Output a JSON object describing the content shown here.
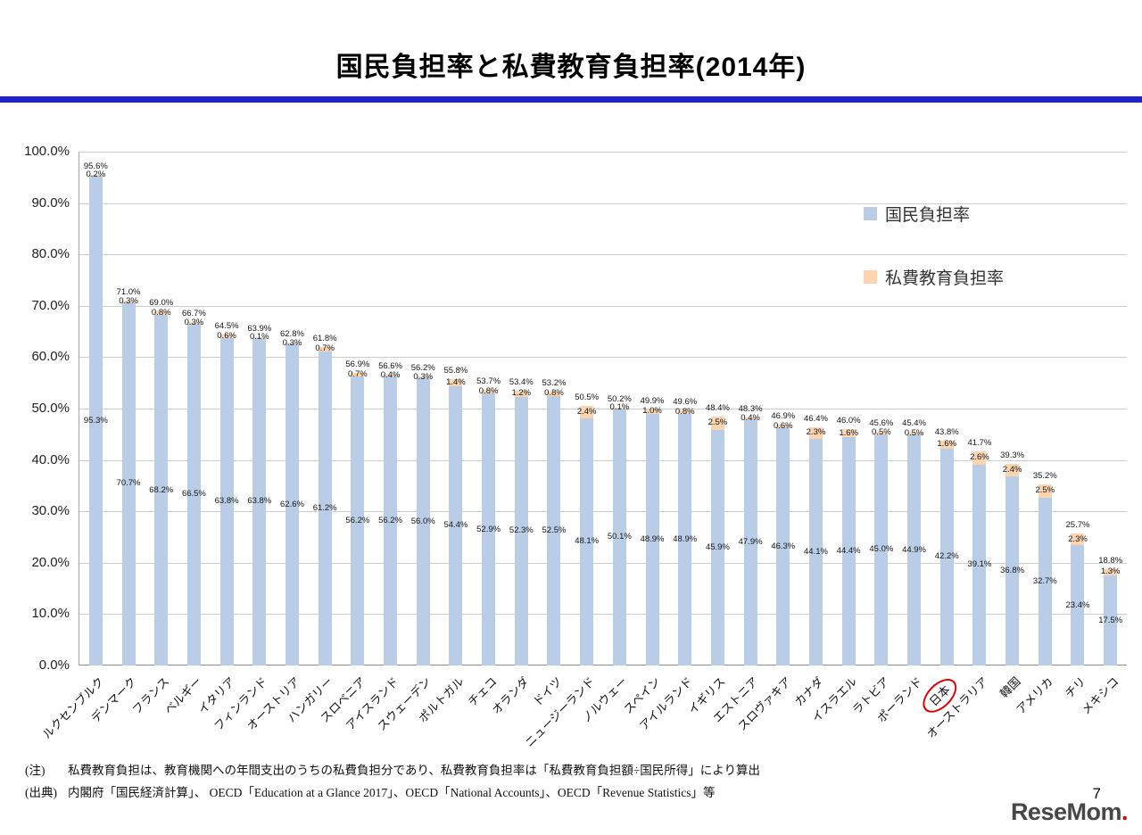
{
  "title": "国民負担率と私費教育負担率(2014年)",
  "legend": {
    "national": "国民負担率",
    "private": "私費教育負担率"
  },
  "colors": {
    "bar_national": "#b9cee6",
    "bar_private": "#fcd5b0",
    "divider_blue": "#2121cc",
    "highlight_red": "#dd0000",
    "grid": "#cccccc"
  },
  "y_axis": {
    "ticks": [
      "100.0%",
      "90.0%",
      "80.0%",
      "70.0%",
      "60.0%",
      "50.0%",
      "40.0%",
      "30.0%",
      "20.0%",
      "10.0%",
      "0.0%"
    ]
  },
  "chart_data": {
    "type": "bar",
    "stacked": true,
    "title": "国民負担率と私費教育負担率(2014年)",
    "xlabel": "",
    "ylabel": "",
    "ylim": [
      0,
      100
    ],
    "grid": true,
    "legend_position": "right",
    "highlight_category": "日本",
    "categories": [
      "ルクセンブルク",
      "デンマーク",
      "フランス",
      "ベルギー",
      "イタリア",
      "フィンランド",
      "オーストリア",
      "ハンガリー",
      "スロベニア",
      "アイスランド",
      "スウェーデン",
      "ポルトガル",
      "チェコ",
      "オランダ",
      "ドイツ",
      "ニュージーランド",
      "ノルウェー",
      "スペイン",
      "アイルランド",
      "イギリス",
      "エストニア",
      "スロヴァキア",
      "カナダ",
      "イスラエル",
      "ラトビア",
      "ポーランド",
      "日本",
      "オーストラリア",
      "韓国",
      "アメリカ",
      "チリ",
      "メキシコ"
    ],
    "series": [
      {
        "name": "国民負担率",
        "values": [
          95.3,
          70.7,
          68.2,
          66.5,
          63.8,
          63.8,
          62.6,
          61.2,
          56.2,
          56.2,
          56.0,
          54.4,
          52.9,
          52.3,
          52.5,
          48.1,
          50.1,
          48.9,
          48.9,
          45.9,
          47.9,
          46.3,
          44.1,
          44.4,
          45.0,
          44.9,
          42.2,
          39.1,
          36.8,
          32.7,
          23.4,
          17.5
        ]
      },
      {
        "name": "私費教育負担率",
        "values": [
          0.2,
          0.3,
          0.8,
          0.3,
          0.6,
          0.1,
          0.3,
          0.7,
          0.7,
          0.4,
          0.3,
          1.4,
          0.8,
          1.2,
          0.8,
          2.4,
          0.1,
          1.0,
          0.8,
          2.5,
          0.4,
          0.6,
          2.3,
          1.6,
          0.5,
          0.5,
          1.6,
          2.6,
          2.4,
          2.5,
          2.3,
          1.3
        ]
      }
    ],
    "totals": [
      95.6,
      71.0,
      69.0,
      66.7,
      64.5,
      63.9,
      62.8,
      61.8,
      56.9,
      56.6,
      56.2,
      55.8,
      53.7,
      53.4,
      53.2,
      50.5,
      50.2,
      49.9,
      49.6,
      48.4,
      48.3,
      46.9,
      46.4,
      46.0,
      45.6,
      45.4,
      43.8,
      41.7,
      39.3,
      35.2,
      25.7,
      18.8
    ]
  },
  "notes": [
    {
      "label": "(注)",
      "text": "私費教育負担は、教育機関への年間支出のうちの私費負担分であり、私費教育負担率は「私費教育負担額÷国民所得」により算出"
    },
    {
      "label": "(出典)",
      "text": "内閣府「国民経済計算」、 OECD「Education at a Glance 2017」、OECD「National Accounts」、OECD「Revenue Statistics」等"
    }
  ],
  "page_number": "7",
  "logo": {
    "text": "ReseMom"
  }
}
